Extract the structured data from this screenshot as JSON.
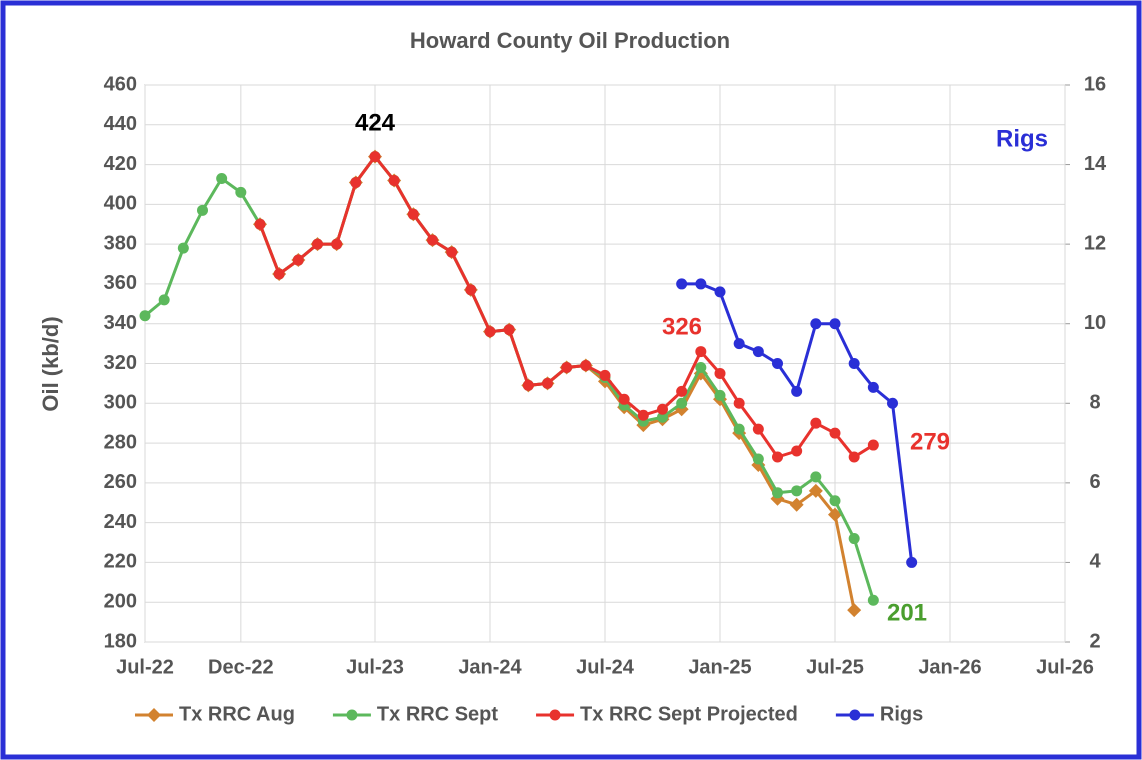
{
  "chart_data": {
    "type": "line",
    "title": "Howard County Oil Production",
    "ylabel": "Oil (kb/d)",
    "x": [
      "2022-07",
      "2022-08",
      "2022-09",
      "2022-10",
      "2022-11",
      "2022-12",
      "2023-01",
      "2023-02",
      "2023-03",
      "2023-04",
      "2023-05",
      "2023-06",
      "2023-07",
      "2023-08",
      "2023-09",
      "2023-10",
      "2023-11",
      "2023-12",
      "2024-01",
      "2024-02",
      "2024-03",
      "2024-04",
      "2024-05",
      "2024-06",
      "2024-07",
      "2024-08",
      "2024-09",
      "2024-10",
      "2024-11",
      "2024-12",
      "2025-01",
      "2025-02",
      "2025-03",
      "2025-04",
      "2025-05",
      "2025-06",
      "2025-07",
      "2025-08",
      "2025-09",
      "2025-10",
      "2025-11"
    ],
    "series": [
      {
        "name": "Tx RRC Aug",
        "color": "#d2822f",
        "marker": "diamond",
        "values": [
          null,
          null,
          null,
          null,
          null,
          null,
          390,
          365,
          372,
          380,
          380,
          411,
          424,
          412,
          395,
          382,
          376,
          357,
          336,
          337,
          309,
          310,
          318,
          319,
          311,
          298,
          289,
          292,
          297,
          315,
          302,
          285,
          269,
          252,
          249,
          256,
          244,
          196,
          null,
          null,
          null
        ]
      },
      {
        "name": "Tx RRC Sept",
        "color": "#5cb85c",
        "marker": "circle",
        "values": [
          344,
          352,
          378,
          397,
          413,
          406,
          390,
          365,
          372,
          380,
          380,
          411,
          424,
          412,
          395,
          382,
          376,
          357,
          336,
          337,
          309,
          310,
          318,
          319,
          313,
          299,
          291,
          293,
          300,
          318,
          304,
          287,
          272,
          255,
          256,
          263,
          251,
          232,
          201,
          null,
          null
        ]
      },
      {
        "name": "Tx RRC Sept Projected",
        "color": "#e8322d",
        "marker": "circle",
        "values": [
          null,
          null,
          null,
          null,
          null,
          null,
          390,
          365,
          372,
          380,
          380,
          411,
          424,
          412,
          395,
          382,
          376,
          357,
          336,
          337,
          309,
          310,
          318,
          319,
          314,
          302,
          294,
          297,
          306,
          326,
          315,
          300,
          287,
          273,
          276,
          290,
          285,
          273,
          279,
          null,
          null
        ]
      },
      {
        "name": "Rigs",
        "color": "#2a2fd6",
        "marker": "circle",
        "axis": "y2",
        "values": [
          null,
          null,
          null,
          null,
          null,
          null,
          null,
          null,
          null,
          null,
          null,
          null,
          null,
          null,
          null,
          null,
          null,
          null,
          null,
          null,
          null,
          null,
          null,
          null,
          null,
          null,
          null,
          null,
          11,
          11,
          10.8,
          9.5,
          9.3,
          9.0,
          8.3,
          10,
          10,
          9.0,
          8.4,
          8.0,
          4.0
        ]
      }
    ],
    "xlim": [
      "2022-07",
      "2026-07"
    ],
    "xticks": [
      {
        "value": "2022-07",
        "label": "Jul-22"
      },
      {
        "value": "2022-12",
        "label": "Dec-22"
      },
      {
        "value": "2023-07",
        "label": "Jul-23"
      },
      {
        "value": "2024-01",
        "label": "Jan-24"
      },
      {
        "value": "2024-07",
        "label": "Jul-24"
      },
      {
        "value": "2025-01",
        "label": "Jan-25"
      },
      {
        "value": "2025-07",
        "label": "Jul-25"
      },
      {
        "value": "2026-01",
        "label": "Jan-26"
      },
      {
        "value": "2026-07",
        "label": "Jul-26"
      }
    ],
    "ylim": [
      180,
      460
    ],
    "yticks": [
      180,
      200,
      220,
      240,
      260,
      280,
      300,
      320,
      340,
      360,
      380,
      400,
      420,
      440,
      460
    ],
    "y2lim": [
      2,
      16
    ],
    "y2ticks": [
      2,
      4,
      6,
      8,
      10,
      12,
      14,
      16
    ],
    "grid": true,
    "legend": "bottom",
    "annotations": [
      {
        "text": "424",
        "color": "#000000"
      },
      {
        "text": "326",
        "color": "#e8322d"
      },
      {
        "text": "279",
        "color": "#e8322d"
      },
      {
        "text": "201",
        "color": "#4a9e2e"
      },
      {
        "text": "Rigs",
        "color": "#2a2fd6"
      }
    ]
  }
}
